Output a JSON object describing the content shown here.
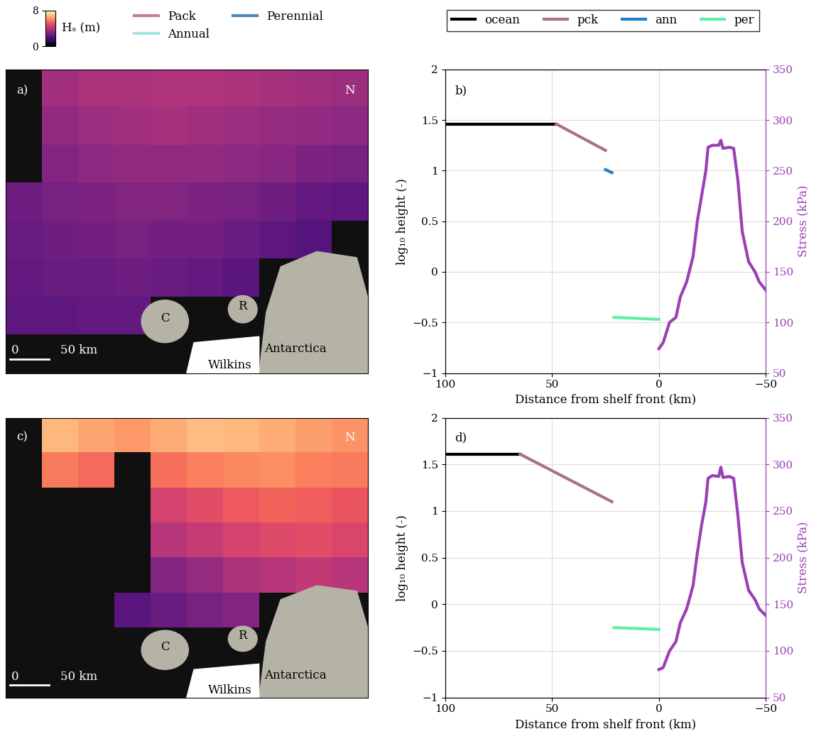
{
  "chart_data": [
    {
      "type": "heatmap",
      "cells": [
        [
          null,
          3.6,
          3.8,
          3.8,
          3.9,
          3.9,
          3.8,
          3.7,
          3.6,
          3.5
        ],
        [
          null,
          3.3,
          3.5,
          3.6,
          3.7,
          3.6,
          3.5,
          3.4,
          3.3,
          3.2
        ],
        [
          null,
          3.0,
          3.2,
          3.3,
          3.3,
          3.3,
          3.2,
          3.1,
          2.9,
          2.8
        ],
        [
          2.6,
          2.8,
          2.9,
          3.0,
          3.0,
          2.9,
          2.8,
          2.6,
          2.4,
          2.3
        ],
        [
          2.5,
          2.6,
          2.7,
          2.8,
          2.7,
          2.7,
          2.5,
          2.3,
          2.1,
          null
        ],
        [
          2.4,
          2.5,
          2.5,
          2.6,
          2.5,
          2.4,
          2.2,
          null,
          null,
          null
        ],
        [
          2.3,
          2.3,
          2.4,
          2.4,
          null,
          null,
          null,
          null,
          null,
          null
        ],
        [
          null,
          null,
          null,
          null,
          null,
          null,
          null,
          null,
          null,
          null
        ]
      ],
      "colorbar": {
        "label": "Hₛ (m)",
        "range": [
          0,
          8
        ],
        "ticks": [
          0,
          8
        ]
      },
      "series": [
        {
          "name": "Pack",
          "color": "#c77d95"
        },
        {
          "name": "Annual",
          "color": "#a6e3e0"
        },
        {
          "name": "Perennial",
          "color": "#4a86b8"
        }
      ],
      "legend": "upper left",
      "tick_labels": false,
      "annotations": [
        {
          "text": "a)"
        },
        {
          "text": "N"
        },
        {
          "text": "C"
        },
        {
          "text": "R"
        },
        {
          "text": "Antarctica"
        },
        {
          "text": "Wilkins"
        },
        {
          "text": "0"
        },
        {
          "text": "50 km"
        }
      ]
    },
    {
      "type": "line",
      "xlabel": "Distance from shelf front (km)",
      "ylabel": "log₁₀ height (-)",
      "y2label": "Stress (kPa)",
      "xlim": [
        100,
        -50
      ],
      "xticks": [
        100,
        50,
        0,
        {
          "value": -50,
          "label": "−50"
        }
      ],
      "ylim": [
        -1,
        2
      ],
      "yticks": [
        {
          "value": -1,
          "label": "−1"
        },
        {
          "value": -0.5,
          "label": "−0.5"
        },
        0,
        0.5,
        1,
        1.5,
        2
      ],
      "y2lim": [
        50,
        350
      ],
      "y2ticks": [
        50,
        100,
        150,
        200,
        250,
        300,
        350
      ],
      "grid": true,
      "legend": "upper center",
      "annotations": [
        {
          "text": "b)"
        }
      ],
      "series": [
        {
          "name": "ocean",
          "color": "#000000",
          "x": [
            100,
            48
          ],
          "values": [
            1.46,
            1.46
          ]
        },
        {
          "name": "pck",
          "color": "#a8737f",
          "x": [
            48,
            25
          ],
          "values": [
            1.46,
            1.2
          ]
        },
        {
          "name": "ann",
          "color": "#1f7fc9",
          "x": [
            25,
            22
          ],
          "values": [
            1.01,
            0.98
          ]
        },
        {
          "name": "per",
          "color": "#5ef0a0",
          "x": [
            21,
            0
          ],
          "values": [
            -0.45,
            -0.47
          ]
        },
        {
          "axis": "y2",
          "color": "#9b3fb5",
          "x": [
            0,
            -2,
            -5,
            -8,
            -10,
            -13,
            -16,
            -18,
            -20,
            -22,
            -23,
            -25,
            -28,
            -29,
            -30,
            -33,
            -35,
            -37,
            -39,
            -42,
            -45,
            -47,
            -50
          ],
          "values": [
            74,
            80,
            100,
            105,
            125,
            140,
            165,
            200,
            225,
            250,
            273,
            275,
            275,
            280,
            272,
            273,
            272,
            240,
            190,
            160,
            150,
            140,
            132
          ]
        }
      ]
    },
    {
      "type": "heatmap",
      "cells": [
        [
          null,
          6.8,
          6.5,
          6.3,
          6.6,
          6.9,
          6.8,
          6.6,
          6.4,
          6.2
        ],
        [
          null,
          5.8,
          5.5,
          null,
          5.6,
          5.9,
          6.0,
          6.1,
          5.9,
          5.8
        ],
        [
          null,
          null,
          null,
          null,
          4.6,
          4.9,
          5.2,
          5.4,
          5.3,
          5.1
        ],
        [
          null,
          null,
          null,
          null,
          4.0,
          4.3,
          4.6,
          4.8,
          4.9,
          4.7
        ],
        [
          null,
          null,
          null,
          null,
          3.0,
          3.4,
          3.8,
          4.0,
          4.2,
          4.0
        ],
        [
          null,
          null,
          null,
          2.2,
          2.5,
          2.8,
          3.0,
          null,
          null,
          null
        ],
        [
          null,
          null,
          null,
          null,
          null,
          null,
          null,
          null,
          null,
          null
        ],
        [
          null,
          null,
          null,
          null,
          null,
          null,
          null,
          null,
          null,
          null
        ]
      ],
      "colorbar_range": [
        0,
        8
      ],
      "tick_labels": false,
      "annotations": [
        {
          "text": "c)"
        },
        {
          "text": "N"
        },
        {
          "text": "C"
        },
        {
          "text": "R"
        },
        {
          "text": "Antarctica"
        },
        {
          "text": "Wilkins"
        },
        {
          "text": "0"
        },
        {
          "text": "50 km"
        }
      ]
    },
    {
      "type": "line",
      "xlabel": "Distance from shelf front (km)",
      "ylabel": "log₁₀ height (-)",
      "y2label": "Stress (kPa)",
      "xlim": [
        100,
        -50
      ],
      "xticks": [
        100,
        50,
        0,
        {
          "value": -50,
          "label": "−50"
        }
      ],
      "ylim": [
        -1,
        2
      ],
      "yticks": [
        {
          "value": -1,
          "label": "−1"
        },
        {
          "value": -0.5,
          "label": "−0.5"
        },
        0,
        0.5,
        1,
        1.5,
        2
      ],
      "y2lim": [
        50,
        350
      ],
      "y2ticks": [
        50,
        100,
        150,
        200,
        250,
        300,
        350
      ],
      "grid": true,
      "annotations": [
        {
          "text": "d)"
        }
      ],
      "series": [
        {
          "name": "ocean",
          "color": "#000000",
          "x": [
            100,
            65
          ],
          "values": [
            1.61,
            1.61
          ]
        },
        {
          "name": "pck",
          "color": "#a8737f",
          "x": [
            65,
            22
          ],
          "values": [
            1.61,
            1.1
          ]
        },
        {
          "name": "per",
          "color": "#5ef0a0",
          "x": [
            21,
            0
          ],
          "values": [
            -0.25,
            -0.27
          ]
        },
        {
          "axis": "y2",
          "color": "#9b3fb5",
          "x": [
            0,
            -2,
            -5,
            -8,
            -10,
            -13,
            -16,
            -18,
            -20,
            -22,
            -23,
            -25,
            -28,
            -29,
            -30,
            -33,
            -35,
            -37,
            -39,
            -42,
            -45,
            -47,
            -50
          ],
          "values": [
            80,
            82,
            100,
            110,
            130,
            145,
            170,
            205,
            235,
            260,
            285,
            288,
            287,
            297,
            286,
            287,
            285,
            245,
            195,
            165,
            155,
            145,
            138
          ]
        }
      ]
    }
  ]
}
